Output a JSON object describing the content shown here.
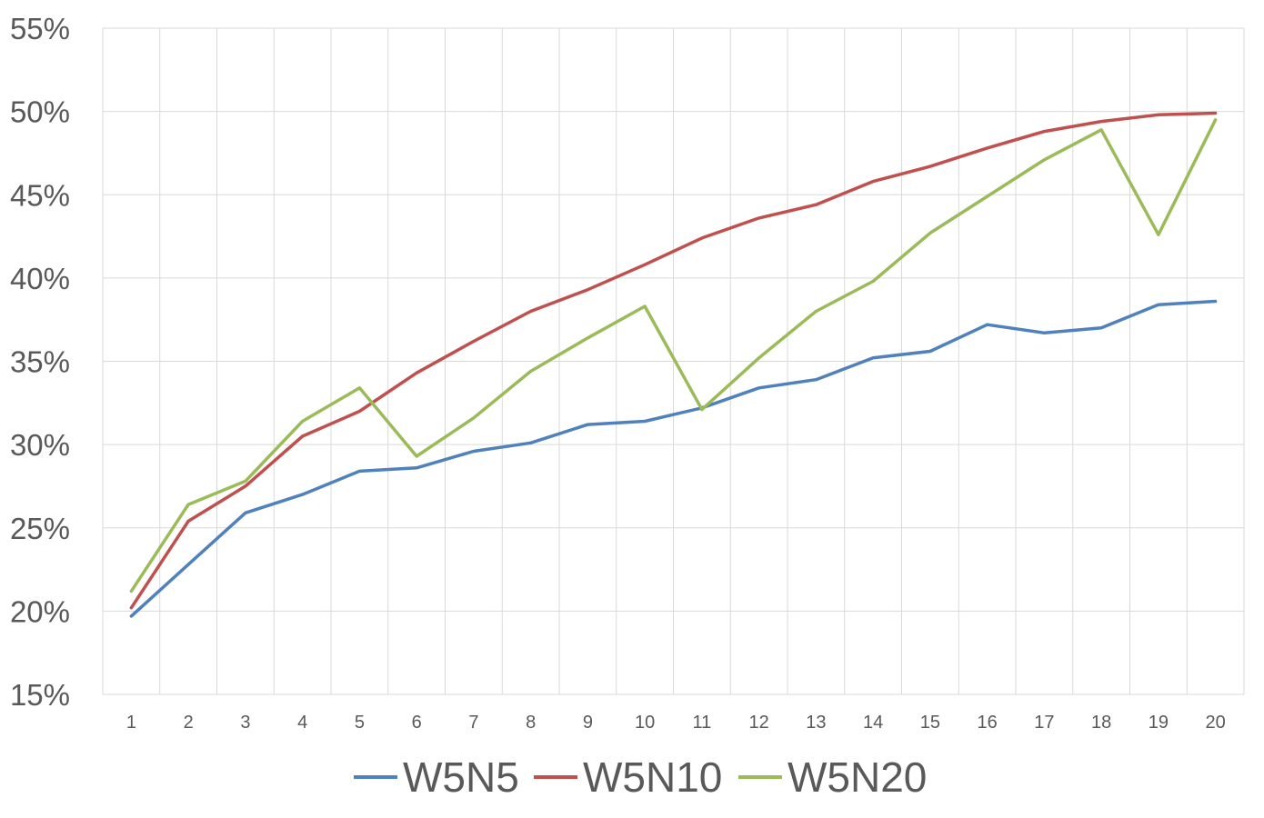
{
  "chart_data": {
    "type": "line",
    "title": "",
    "xlabel": "",
    "ylabel": "",
    "categories": [
      "1",
      "2",
      "3",
      "4",
      "5",
      "6",
      "7",
      "8",
      "9",
      "10",
      "11",
      "12",
      "13",
      "14",
      "15",
      "16",
      "17",
      "18",
      "19",
      "20"
    ],
    "y_ticks": [
      "15%",
      "20%",
      "25%",
      "30%",
      "35%",
      "40%",
      "45%",
      "50%",
      "55%"
    ],
    "ylim": [
      15,
      55
    ],
    "y_unit": "%",
    "grid": true,
    "legend_position": "bottom",
    "series": [
      {
        "name": "W5N5",
        "color": "#4f81bd",
        "values": [
          19.7,
          22.8,
          25.9,
          27.0,
          28.4,
          28.6,
          29.6,
          30.1,
          31.2,
          31.4,
          32.2,
          33.4,
          33.9,
          35.2,
          35.6,
          37.2,
          36.7,
          37.0,
          38.4,
          38.6
        ]
      },
      {
        "name": "W5N10",
        "color": "#c0504d",
        "values": [
          20.2,
          25.4,
          27.5,
          30.5,
          32.0,
          34.3,
          36.2,
          38.0,
          39.3,
          40.8,
          42.4,
          43.6,
          44.4,
          45.8,
          46.7,
          47.8,
          48.8,
          49.4,
          49.8,
          49.9
        ]
      },
      {
        "name": "W5N20",
        "color": "#9bbb59",
        "values": [
          21.2,
          26.4,
          27.8,
          31.4,
          33.4,
          29.3,
          31.6,
          34.4,
          36.4,
          38.3,
          32.1,
          35.2,
          38.0,
          39.8,
          42.7,
          44.9,
          47.1,
          48.9,
          42.6,
          49.5
        ]
      }
    ]
  }
}
